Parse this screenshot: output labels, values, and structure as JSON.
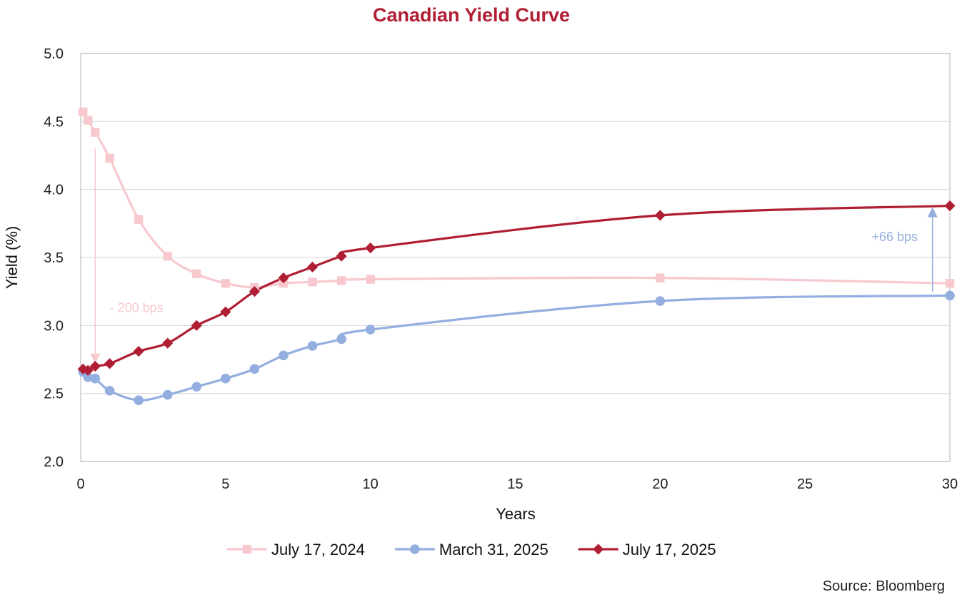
{
  "chart_data": {
    "type": "line",
    "title": "Canadian Yield Curve",
    "xlabel": "Years",
    "ylabel": "Yield (%)",
    "xlim": [
      0,
      30
    ],
    "ylim": [
      2.0,
      5.0
    ],
    "xticks": [
      0,
      5,
      10,
      15,
      20,
      25,
      30
    ],
    "yticks": [
      2.0,
      2.5,
      3.0,
      3.5,
      4.0,
      4.5,
      5.0
    ],
    "ytick_labels": [
      "2.0",
      "2.5",
      "3.0",
      "3.5",
      "4.0",
      "4.5",
      "5.0"
    ],
    "grid": "horizontal",
    "legend_position": "bottom",
    "source": "Source: Bloomberg",
    "series": [
      {
        "name": "July 17, 2024",
        "color": "#f7c9cf",
        "marker": "square",
        "x": [
          0.08,
          0.25,
          0.5,
          1,
          2,
          3,
          4,
          5,
          6,
          7,
          8,
          9,
          10,
          20,
          30
        ],
        "y": [
          4.57,
          4.51,
          4.42,
          4.23,
          3.78,
          3.51,
          3.38,
          3.31,
          3.28,
          3.31,
          3.32,
          3.33,
          3.34,
          3.35,
          3.31
        ]
      },
      {
        "name": "March 31, 2025",
        "color": "#93aedf",
        "marker": "circle",
        "x": [
          0.08,
          0.25,
          0.5,
          1,
          2,
          3,
          4,
          5,
          6,
          7,
          8,
          9,
          10,
          20,
          30
        ],
        "y": [
          2.66,
          2.62,
          2.61,
          2.52,
          2.45,
          2.49,
          2.55,
          2.61,
          2.68,
          2.78,
          2.85,
          2.9,
          2.97,
          3.18,
          3.22
        ]
      },
      {
        "name": "July 17, 2025",
        "color": "#b01e34",
        "marker": "diamond",
        "x": [
          0.08,
          0.25,
          0.5,
          1,
          2,
          3,
          4,
          5,
          6,
          7,
          8,
          9,
          10,
          20,
          30
        ],
        "y": [
          2.68,
          2.67,
          2.7,
          2.72,
          2.81,
          2.87,
          3.0,
          3.1,
          3.25,
          3.35,
          3.43,
          3.51,
          3.57,
          3.81,
          3.88
        ]
      }
    ],
    "annotations": [
      {
        "text": "- 200 bps",
        "color": "#f7c9cf",
        "arrow": {
          "x": 0.5,
          "from_y": 4.3,
          "to_y": 2.72,
          "direction": "down"
        },
        "label_at": {
          "x": 1.0,
          "y": 3.1
        }
      },
      {
        "text": "+66 bps",
        "color": "#93aedf",
        "arrow": {
          "x": 29.4,
          "from_y": 3.25,
          "to_y": 3.87,
          "direction": "up"
        },
        "label_at": {
          "x": 27.3,
          "y": 3.62
        }
      }
    ]
  }
}
